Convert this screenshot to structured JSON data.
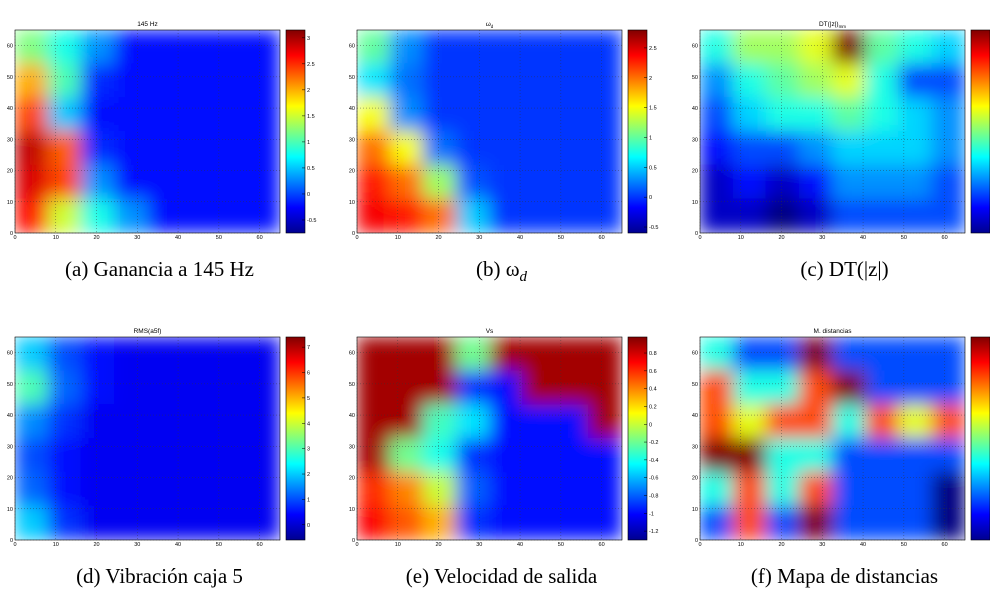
{
  "chart_data": [
    {
      "type": "heatmap",
      "title": "145 Hz",
      "caption": "(a) Ganancia a 145 Hz",
      "xlim": [
        0,
        65
      ],
      "ylim": [
        0,
        65
      ],
      "xticks": [
        0,
        10,
        20,
        30,
        40,
        50,
        60
      ],
      "yticks": [
        0,
        10,
        20,
        30,
        40,
        50,
        60
      ],
      "clim": [
        -0.75,
        3.15
      ],
      "cticks": [
        -0.5,
        0,
        0.5,
        1,
        1.5,
        2,
        2.5,
        3
      ],
      "grid": true,
      "z": [
        [
          1.2,
          0.8,
          0.3,
          -0.2,
          -0.2,
          -0.2,
          -0.2,
          -0.2
        ],
        [
          2.0,
          1.0,
          -0.1,
          -0.2,
          -0.2,
          -0.2,
          -0.2,
          -0.2
        ],
        [
          2.4,
          0.5,
          -0.2,
          -0.2,
          -0.2,
          -0.2,
          -0.2,
          -0.2
        ],
        [
          2.9,
          2.3,
          -0.1,
          -0.2,
          -0.2,
          -0.2,
          -0.2,
          -0.2
        ],
        [
          2.8,
          2.4,
          0.3,
          -0.2,
          -0.2,
          -0.2,
          -0.2,
          -0.2
        ],
        [
          2.6,
          1.5,
          0.8,
          0.3,
          -0.2,
          -0.2,
          -0.2,
          -0.2
        ]
      ]
    },
    {
      "type": "heatmap",
      "title": "ω",
      "title_sub": "d",
      "caption": "(b) ω",
      "caption_sub": "d",
      "xlim": [
        0,
        65
      ],
      "ylim": [
        0,
        65
      ],
      "xticks": [
        0,
        10,
        20,
        30,
        40,
        50,
        60
      ],
      "yticks": [
        0,
        10,
        20,
        30,
        40,
        50,
        60
      ],
      "clim": [
        -0.6,
        2.8
      ],
      "cticks": [
        -0.5,
        0,
        0.5,
        1,
        1.5,
        2,
        2.5
      ],
      "grid": true,
      "z": [
        [
          1.0,
          0.3,
          0,
          0,
          0,
          0,
          0,
          0
        ],
        [
          0.6,
          0.2,
          0,
          0,
          0,
          0,
          0,
          0
        ],
        [
          1.5,
          0.3,
          0,
          0,
          0,
          0,
          0,
          0
        ],
        [
          2.0,
          1.5,
          0.2,
          0,
          0,
          0,
          0,
          0
        ],
        [
          2.3,
          2.0,
          1.2,
          0.1,
          0,
          0,
          0,
          0
        ],
        [
          2.4,
          2.3,
          2.0,
          0.5,
          0,
          0,
          0,
          0
        ]
      ]
    },
    {
      "type": "heatmap",
      "title": "DT(|z|)",
      "title_sub": "mm",
      "caption": "(c) DT(|z|)",
      "xlim": [
        0,
        65
      ],
      "ylim": [
        0,
        65
      ],
      "xticks": [
        0,
        10,
        20,
        30,
        40,
        50,
        60
      ],
      "yticks": [
        0,
        10,
        20,
        30,
        40,
        50,
        60
      ],
      "grid": true,
      "z": [
        [
          0.45,
          0.55,
          0.55,
          0.6,
          0.9,
          0.5,
          0.45,
          0.4
        ],
        [
          0.35,
          0.45,
          0.5,
          0.55,
          0.6,
          0.45,
          0.3,
          0.3
        ],
        [
          0.3,
          0.4,
          0.45,
          0.45,
          0.5,
          0.45,
          0.4,
          0.35
        ],
        [
          0.25,
          0.3,
          0.3,
          0.35,
          0.4,
          0.4,
          0.4,
          0.35
        ],
        [
          0.2,
          0.25,
          0.2,
          0.25,
          0.35,
          0.35,
          0.35,
          0.3
        ],
        [
          0.2,
          0.2,
          0.15,
          0.2,
          0.3,
          0.3,
          0.3,
          0.3
        ]
      ]
    },
    {
      "type": "heatmap",
      "title": "RMS(a5f)",
      "caption": "(d) Vibración caja 5",
      "xlim": [
        0,
        65
      ],
      "ylim": [
        0,
        65
      ],
      "xticks": [
        0,
        10,
        20,
        30,
        40,
        50,
        60
      ],
      "yticks": [
        0,
        10,
        20,
        30,
        40,
        50,
        60
      ],
      "clim": [
        -0.6,
        7.4
      ],
      "cticks": [
        0,
        1,
        2,
        3,
        4,
        5,
        6,
        7
      ],
      "grid": true,
      "z": [
        [
          2.0,
          1.0,
          0.5,
          0.3,
          0.3,
          0.3,
          0.3,
          0.3
        ],
        [
          3.0,
          1.2,
          0.5,
          0.3,
          0.3,
          0.3,
          0.3,
          0.3
        ],
        [
          1.5,
          0.8,
          0.3,
          0.3,
          0.3,
          0.3,
          0.3,
          0.3
        ],
        [
          1.0,
          0.5,
          0.3,
          0.3,
          0.3,
          0.3,
          0.3,
          0.3
        ],
        [
          1.2,
          0.5,
          0.3,
          0.3,
          0.3,
          0.3,
          0.3,
          0.3
        ],
        [
          2.0,
          0.8,
          0.3,
          0.3,
          0.3,
          0.3,
          0.3,
          0.3
        ]
      ]
    },
    {
      "type": "heatmap",
      "title": "Vs",
      "caption": "(e) Velocidad de salida",
      "xlim": [
        0,
        65
      ],
      "ylim": [
        0,
        65
      ],
      "xticks": [
        0,
        10,
        20,
        30,
        40,
        50,
        60
      ],
      "yticks": [
        0,
        10,
        20,
        30,
        40,
        50,
        60
      ],
      "clim": [
        -1.3,
        0.98
      ],
      "cticks": [
        -1.2,
        -1,
        -0.8,
        -0.6,
        -0.4,
        -0.2,
        0,
        0.2,
        0.4,
        0.6,
        0.8
      ],
      "grid": true,
      "z": [
        [
          0.9,
          0.9,
          0.9,
          -0.2,
          0.9,
          0.9,
          0.9,
          0.9
        ],
        [
          0.9,
          0.9,
          0.9,
          -0.9,
          -1.0,
          0.9,
          0.9,
          0.9
        ],
        [
          0.9,
          0.9,
          -0.3,
          -0.5,
          -1.0,
          -1.0,
          -1.0,
          0.9
        ],
        [
          0.9,
          -0.2,
          -0.4,
          -0.9,
          -1.0,
          -1.0,
          -1.0,
          -1.0
        ],
        [
          0.6,
          0.4,
          0,
          -0.8,
          -1.0,
          -1.0,
          -1.0,
          -1.0
        ],
        [
          0.7,
          0.5,
          0.3,
          -0.9,
          -1.0,
          -1.0,
          -1.0,
          -1.0
        ]
      ]
    },
    {
      "type": "heatmap",
      "title": "M. distancias",
      "caption": "(f) Mapa de distancias",
      "xlim": [
        0,
        65
      ],
      "ylim": [
        0,
        65
      ],
      "xticks": [
        0,
        10,
        20,
        30,
        40,
        50,
        60
      ],
      "yticks": [
        0,
        10,
        20,
        30,
        40,
        50,
        60
      ],
      "grid": true,
      "z": [
        [
          0.2,
          0.15,
          0.15,
          0.35,
          0.15,
          0.15,
          0.15,
          0.15
        ],
        [
          0.3,
          0.2,
          0.2,
          0.3,
          0.35,
          0.15,
          0.15,
          0.15
        ],
        [
          0.3,
          0.25,
          0.3,
          0.3,
          0.2,
          0.3,
          0.25,
          0.3
        ],
        [
          0.35,
          0.35,
          0.2,
          0.2,
          0.15,
          0.15,
          0.15,
          0.15
        ],
        [
          0.2,
          0.3,
          0.2,
          0.3,
          0.15,
          0.15,
          0.15,
          0.1
        ],
        [
          0.15,
          0.3,
          0.15,
          0.35,
          0.15,
          0.15,
          0.15,
          0.1
        ]
      ]
    }
  ]
}
